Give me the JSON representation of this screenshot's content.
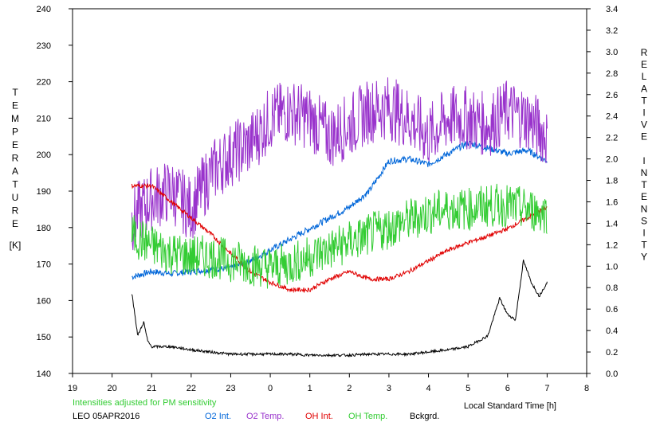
{
  "chart_data": {
    "type": "line",
    "ylabel_left_letters": [
      "T",
      "E",
      "M",
      "P",
      "E",
      "R",
      "A",
      "T",
      "U",
      "R",
      "E"
    ],
    "ylabel_left_unit": "[K]",
    "ylabel_right_letters": [
      "R",
      "E",
      "L",
      "A",
      "T",
      "I",
      "V",
      "E",
      "",
      "I",
      "N",
      "T",
      "E",
      "N",
      "S",
      "I",
      "T",
      "Y"
    ],
    "xlabel": "Local Standard Time [h]",
    "note": "Intensities adjusted for PM sensitivity",
    "station": "LEO 05APR2016",
    "xlim": [
      19,
      32
    ],
    "ylim_left": [
      140,
      240
    ],
    "ylim_right": [
      0.0,
      3.4
    ],
    "x_ticks": [
      19,
      20,
      21,
      22,
      23,
      24,
      25,
      26,
      27,
      28,
      29,
      30,
      31,
      32
    ],
    "x_tick_labels": [
      "19",
      "20",
      "21",
      "22",
      "23",
      "0",
      "1",
      "2",
      "3",
      "4",
      "5",
      "6",
      "7",
      "8"
    ],
    "y_left_ticks": [
      140,
      150,
      160,
      170,
      180,
      190,
      200,
      210,
      220,
      230,
      240
    ],
    "y_right_ticks": [
      "0.0",
      "0.2",
      "0.4",
      "0.6",
      "0.8",
      "1.0",
      "1.2",
      "1.4",
      "1.6",
      "1.8",
      "2.0",
      "2.2",
      "2.4",
      "2.6",
      "2.8",
      "3.0",
      "3.2",
      "3.4"
    ],
    "series": [
      {
        "name": "O2 Int.",
        "axis": "right",
        "color": "#0066d9",
        "noise": 0.03,
        "x": [
          20.5,
          21.0,
          21.5,
          22.0,
          22.5,
          23.0,
          23.5,
          24.0,
          24.5,
          25.0,
          25.5,
          26.0,
          26.5,
          27.0,
          27.5,
          28.0,
          28.5,
          29.0,
          29.5,
          30.0,
          30.5,
          31.0
        ],
        "y": [
          0.9,
          0.95,
          0.93,
          0.95,
          0.97,
          0.98,
          1.05,
          1.15,
          1.25,
          1.35,
          1.45,
          1.55,
          1.7,
          1.98,
          2.0,
          1.95,
          2.05,
          2.15,
          2.1,
          2.05,
          2.08,
          1.98
        ]
      },
      {
        "name": "O2 Temp.",
        "axis": "left",
        "color": "#9933cc",
        "noise": 9,
        "x": [
          20.5,
          21.0,
          21.5,
          22.0,
          22.5,
          23.0,
          23.5,
          24.0,
          24.5,
          25.0,
          25.5,
          26.0,
          26.5,
          27.0,
          27.5,
          28.0,
          28.5,
          29.0,
          29.5,
          30.0,
          30.5,
          31.0
        ],
        "y": [
          182,
          188,
          190,
          185,
          195,
          200,
          203,
          210,
          212,
          210,
          205,
          208,
          212,
          213,
          210,
          205,
          210,
          210,
          208,
          212,
          210,
          205
        ]
      },
      {
        "name": "OH Int.",
        "axis": "right",
        "color": "#e00000",
        "noise": 0.02,
        "x": [
          20.5,
          21.0,
          21.5,
          22.0,
          22.5,
          23.0,
          23.5,
          24.0,
          24.5,
          25.0,
          25.5,
          26.0,
          26.5,
          27.0,
          27.5,
          28.0,
          28.5,
          29.0,
          29.5,
          30.0,
          30.5,
          31.0
        ],
        "y": [
          1.75,
          1.75,
          1.6,
          1.45,
          1.3,
          1.12,
          0.95,
          0.85,
          0.78,
          0.78,
          0.88,
          0.95,
          0.88,
          0.88,
          0.95,
          1.05,
          1.15,
          1.22,
          1.28,
          1.35,
          1.45,
          1.55
        ]
      },
      {
        "name": "OH Temp.",
        "axis": "left",
        "color": "#33cc33",
        "noise": 6,
        "x": [
          20.5,
          21.0,
          21.5,
          22.0,
          22.5,
          23.0,
          23.5,
          24.0,
          24.5,
          25.0,
          25.5,
          26.0,
          26.5,
          27.0,
          27.5,
          28.0,
          28.5,
          29.0,
          29.5,
          30.0,
          30.5,
          31.0
        ],
        "y": [
          178,
          175,
          173,
          172,
          172,
          171,
          170,
          169,
          170,
          172,
          174,
          176,
          178,
          180,
          182,
          184,
          185,
          185,
          186,
          186,
          185,
          184
        ]
      },
      {
        "name": "Bckgrd.",
        "axis": "right",
        "color": "#000000",
        "noise": 0.012,
        "x": [
          20.5,
          20.65,
          20.8,
          20.9,
          21.0,
          21.5,
          22.0,
          22.5,
          23.0,
          23.5,
          24.0,
          24.5,
          25.0,
          25.5,
          26.0,
          26.5,
          27.0,
          27.5,
          28.0,
          28.5,
          29.0,
          29.5,
          29.8,
          30.0,
          30.2,
          30.4,
          30.6,
          30.8,
          31.0
        ],
        "y": [
          0.75,
          0.35,
          0.48,
          0.3,
          0.25,
          0.25,
          0.22,
          0.2,
          0.18,
          0.18,
          0.18,
          0.18,
          0.17,
          0.17,
          0.17,
          0.18,
          0.18,
          0.18,
          0.2,
          0.22,
          0.25,
          0.35,
          0.7,
          0.55,
          0.5,
          1.05,
          0.85,
          0.72,
          0.85
        ]
      }
    ],
    "legend_position": "bottom"
  }
}
